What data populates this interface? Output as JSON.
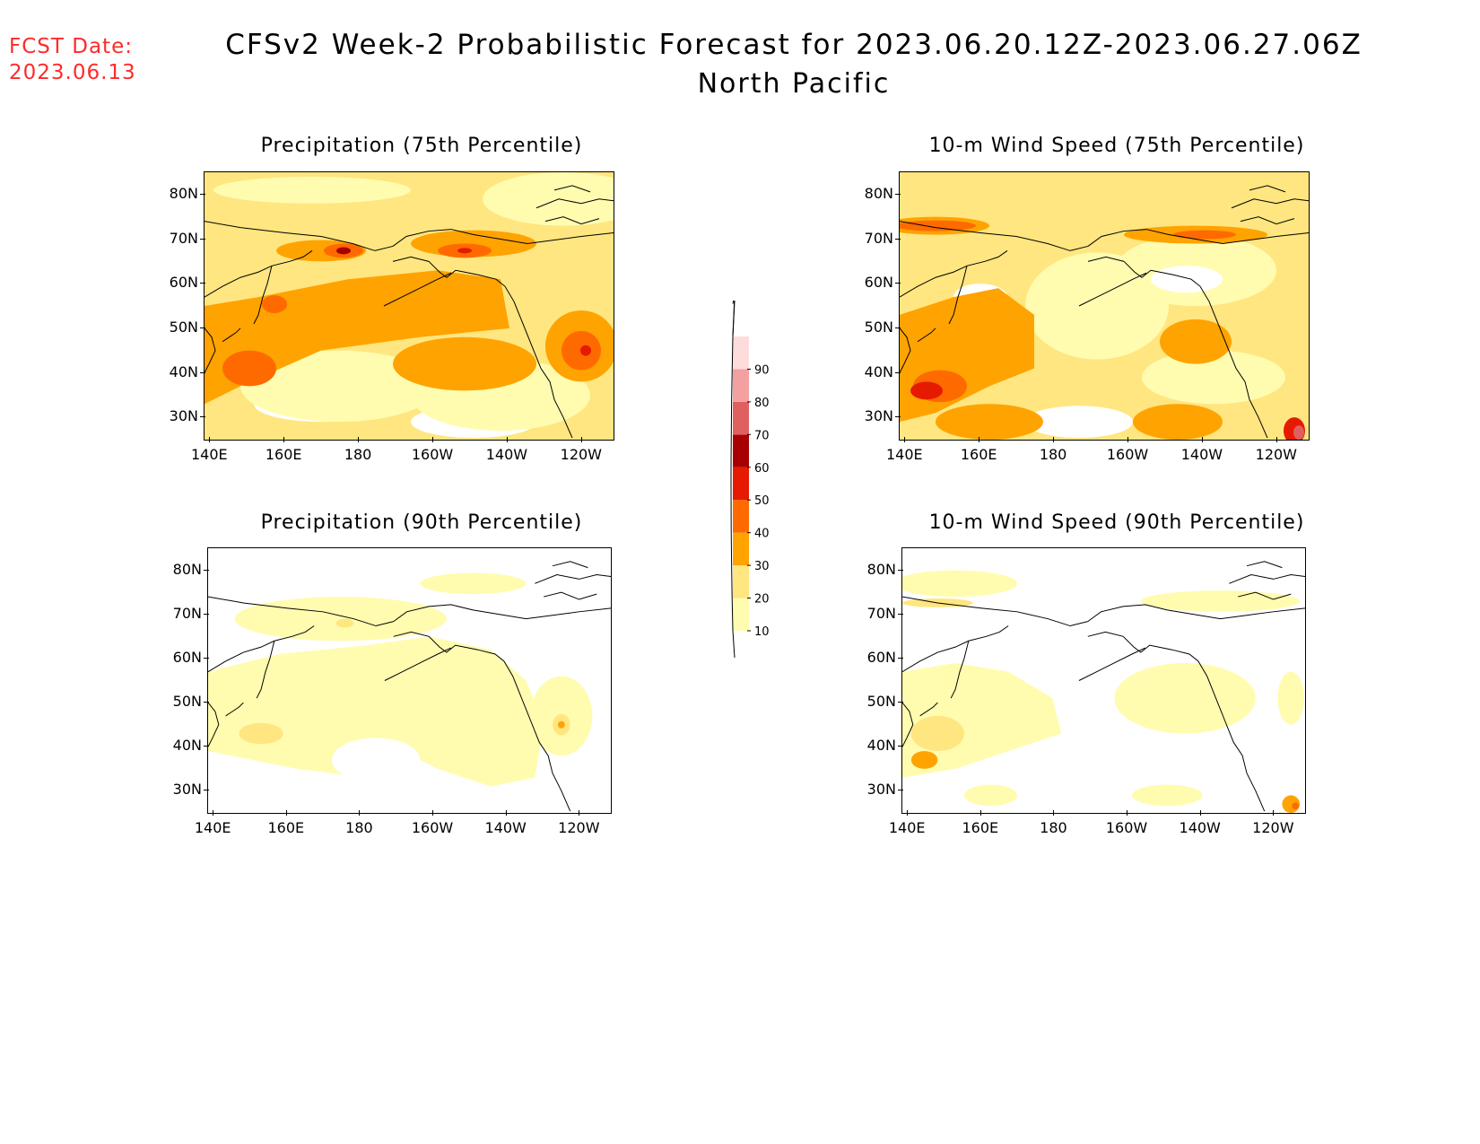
{
  "header": {
    "fcst_label": "FCST Date:",
    "fcst_date": "2023.06.13",
    "title": "CFSv2 Week-2 Probabilistic Forecast for 2023.06.20.12Z-2023.06.27.06Z",
    "region": "North Pacific"
  },
  "panels": [
    {
      "title": "Precipitation (75th Percentile)"
    },
    {
      "title": "10-m Wind Speed (75th Percentile)"
    },
    {
      "title": "Precipitation (90th Percentile)"
    },
    {
      "title": "10-m Wind Speed (90th Percentile)"
    }
  ],
  "axes": {
    "lat_labels": [
      "80N",
      "70N",
      "60N",
      "50N",
      "40N",
      "30N"
    ],
    "lon_labels": [
      "140E",
      "160E",
      "180",
      "160W",
      "140W",
      "120W"
    ]
  },
  "colorbar": {
    "levels": [
      "10",
      "20",
      "30",
      "40",
      "50",
      "60",
      "70",
      "80",
      "90"
    ],
    "colors": [
      "#fffcb0",
      "#ffe680",
      "#ffa300",
      "#ff6a00",
      "#e61a00",
      "#a80000",
      "#e06060",
      "#f2a0a0",
      "#ffdcdc"
    ]
  }
}
